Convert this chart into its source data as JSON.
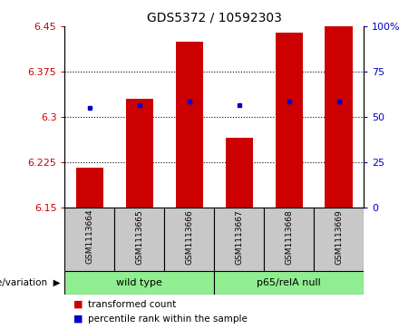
{
  "title": "GDS5372 / 10592303",
  "samples": [
    "GSM1113664",
    "GSM1113665",
    "GSM1113666",
    "GSM1113667",
    "GSM1113668",
    "GSM1113669"
  ],
  "red_values": [
    6.215,
    6.33,
    6.425,
    6.265,
    6.44,
    6.45
  ],
  "blue_values": [
    6.315,
    6.32,
    6.325,
    6.32,
    6.325,
    6.325
  ],
  "ylim_left": [
    6.15,
    6.45
  ],
  "ylim_right": [
    0,
    100
  ],
  "yticks_left": [
    6.15,
    6.225,
    6.3,
    6.375,
    6.45
  ],
  "yticks_right": [
    0,
    25,
    50,
    75,
    100
  ],
  "ytick_labels_left": [
    "6.15",
    "6.225",
    "6.3",
    "6.375",
    "6.45"
  ],
  "ytick_labels_right": [
    "0",
    "25",
    "50",
    "75",
    "100%"
  ],
  "groups": [
    {
      "label": "wild type",
      "indices": [
        0,
        1,
        2
      ],
      "color": "#90EE90"
    },
    {
      "label": "p65/relA null",
      "indices": [
        3,
        4,
        5
      ],
      "color": "#90EE90"
    }
  ],
  "bar_color": "#CC0000",
  "dot_color": "#0000CC",
  "bar_bottom": 6.15,
  "bar_width": 0.55,
  "grid_color": "black",
  "tick_color_left": "#CC0000",
  "tick_color_right": "#0000CC",
  "bg_color_xtick": "#C8C8C8",
  "legend_red": "transformed count",
  "legend_blue": "percentile rank within the sample"
}
